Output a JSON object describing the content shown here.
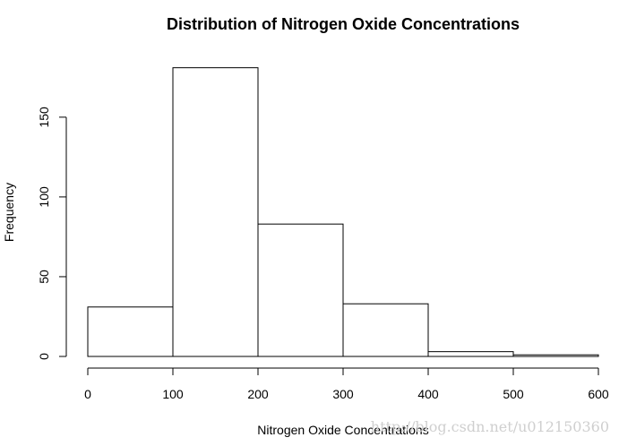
{
  "chart_data": {
    "type": "bar",
    "title": "Distribution of Nitrogen Oxide Concentrations",
    "xlabel": "Nitrogen Oxide Concentrations",
    "ylabel": "Frequency",
    "bins": [
      {
        "from": 0,
        "to": 100,
        "count": 31
      },
      {
        "from": 100,
        "to": 200,
        "count": 181
      },
      {
        "from": 200,
        "to": 300,
        "count": 83
      },
      {
        "from": 300,
        "to": 400,
        "count": 33
      },
      {
        "from": 400,
        "to": 500,
        "count": 3
      },
      {
        "from": 500,
        "to": 600,
        "count": 1
      }
    ],
    "xlim": [
      0,
      600
    ],
    "ylim": [
      0,
      181
    ],
    "xticks": [
      0,
      100,
      200,
      300,
      400,
      500,
      600
    ],
    "yticks": [
      0,
      50,
      100,
      150
    ],
    "grid": false,
    "bar_color": "#ffffff",
    "edge_color": "#000000"
  },
  "watermark": "http://blog.csdn.net/u012150360"
}
